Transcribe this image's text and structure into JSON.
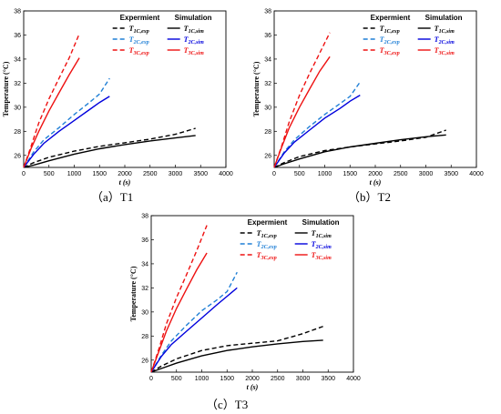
{
  "captions": [
    "（a）T1",
    "（b）T2",
    "（c）T3"
  ],
  "colors": {
    "1C": "#000000",
    "2C": "#1f7fd6",
    "2C_sim": "#0000dd",
    "3C": "#ee1111"
  },
  "chart_data": [
    {
      "type": "line",
      "xlabel": "t (s)",
      "ylabel": "Temperature (°C)",
      "xlim": [
        0,
        4000
      ],
      "ylim": [
        25,
        38
      ],
      "xticks": [
        0,
        500,
        1000,
        1500,
        2000,
        2500,
        3000,
        3500,
        4000
      ],
      "yticks": [
        26,
        28,
        30,
        32,
        34,
        36,
        38
      ],
      "grid": false,
      "legend": {
        "position": "top-right",
        "headers": [
          "Expermient",
          "Simulation"
        ]
      },
      "series": [
        {
          "name": "T1C,exp",
          "style": "dashed",
          "color": "#000000",
          "points": [
            [
              0,
              25
            ],
            [
              200,
              25.4
            ],
            [
              500,
              25.85
            ],
            [
              1000,
              26.35
            ],
            [
              1500,
              26.75
            ],
            [
              2000,
              27.05
            ],
            [
              2500,
              27.35
            ],
            [
              3000,
              27.75
            ],
            [
              3400,
              28.25
            ]
          ]
        },
        {
          "name": "T2C,exp",
          "style": "dashed",
          "color": "#1f7fd6",
          "points": [
            [
              0,
              25
            ],
            [
              200,
              26.3
            ],
            [
              400,
              27.3
            ],
            [
              700,
              28.3
            ],
            [
              1000,
              29.4
            ],
            [
              1300,
              30.4
            ],
            [
              1500,
              31.1
            ],
            [
              1700,
              32.4
            ]
          ]
        },
        {
          "name": "T3C,exp",
          "style": "dashed",
          "color": "#ee1111",
          "points": [
            [
              0,
              25
            ],
            [
              150,
              26.8
            ],
            [
              300,
              28.7
            ],
            [
              500,
              30.7
            ],
            [
              700,
              32.4
            ],
            [
              900,
              34.1
            ],
            [
              1100,
              36.1
            ]
          ]
        },
        {
          "name": "T1C,sim",
          "style": "solid",
          "color": "#000000",
          "points": [
            [
              0,
              25
            ],
            [
              200,
              25.2
            ],
            [
              500,
              25.55
            ],
            [
              1000,
              26.1
            ],
            [
              1500,
              26.55
            ],
            [
              2000,
              26.9
            ],
            [
              2500,
              27.2
            ],
            [
              3000,
              27.45
            ],
            [
              3400,
              27.65
            ]
          ]
        },
        {
          "name": "T2C,sim",
          "style": "solid",
          "color": "#0000dd",
          "points": [
            [
              0,
              25
            ],
            [
              200,
              26.1
            ],
            [
              400,
              27
            ],
            [
              700,
              28
            ],
            [
              1000,
              28.9
            ],
            [
              1300,
              29.8
            ],
            [
              1500,
              30.4
            ],
            [
              1700,
              30.9
            ]
          ]
        },
        {
          "name": "T3C,sim",
          "style": "solid",
          "color": "#ee1111",
          "points": [
            [
              0,
              25
            ],
            [
              150,
              26.6
            ],
            [
              300,
              28
            ],
            [
              500,
              29.7
            ],
            [
              700,
              31.2
            ],
            [
              900,
              32.7
            ],
            [
              1100,
              34.1
            ]
          ]
        }
      ]
    },
    {
      "type": "line",
      "xlabel": "t (s)",
      "ylabel": "Temperature (°C)",
      "xlim": [
        0,
        4000
      ],
      "ylim": [
        25,
        38
      ],
      "xticks": [
        0,
        500,
        1000,
        1500,
        2000,
        2500,
        3000,
        3500,
        4000
      ],
      "yticks": [
        26,
        28,
        30,
        32,
        34,
        36,
        38
      ],
      "grid": false,
      "legend": {
        "position": "top-right",
        "headers": [
          "Expermient",
          "Simulation"
        ]
      },
      "series": [
        {
          "name": "T1C,exp",
          "style": "dashed",
          "color": "#000000",
          "points": [
            [
              0,
              25
            ],
            [
              200,
              25.4
            ],
            [
              500,
              25.9
            ],
            [
              1000,
              26.4
            ],
            [
              1500,
              26.7
            ],
            [
              2000,
              26.95
            ],
            [
              2500,
              27.2
            ],
            [
              3000,
              27.5
            ],
            [
              3400,
              28.1
            ]
          ]
        },
        {
          "name": "T2C,exp",
          "style": "dashed",
          "color": "#1f7fd6",
          "points": [
            [
              0,
              25
            ],
            [
              200,
              26.3
            ],
            [
              400,
              27.3
            ],
            [
              700,
              28.4
            ],
            [
              1000,
              29.4
            ],
            [
              1300,
              30.3
            ],
            [
              1500,
              30.9
            ],
            [
              1700,
              32.1
            ]
          ]
        },
        {
          "name": "T3C,exp",
          "style": "dashed",
          "color": "#ee1111",
          "points": [
            [
              0,
              25
            ],
            [
              150,
              26.8
            ],
            [
              300,
              28.8
            ],
            [
              500,
              31
            ],
            [
              700,
              32.8
            ],
            [
              900,
              34.5
            ],
            [
              1100,
              36.2
            ]
          ]
        },
        {
          "name": "T1C,sim",
          "style": "solid",
          "color": "#000000",
          "points": [
            [
              0,
              25
            ],
            [
              200,
              25.3
            ],
            [
              500,
              25.7
            ],
            [
              1000,
              26.3
            ],
            [
              1500,
              26.7
            ],
            [
              2000,
              27
            ],
            [
              2500,
              27.3
            ],
            [
              3000,
              27.55
            ],
            [
              3400,
              27.7
            ]
          ]
        },
        {
          "name": "T2C,sim",
          "style": "solid",
          "color": "#0000dd",
          "points": [
            [
              0,
              25
            ],
            [
              200,
              26.2
            ],
            [
              400,
              27.1
            ],
            [
              700,
              28.1
            ],
            [
              1000,
              29.1
            ],
            [
              1300,
              29.9
            ],
            [
              1500,
              30.5
            ],
            [
              1700,
              31
            ]
          ]
        },
        {
          "name": "T3C,sim",
          "style": "solid",
          "color": "#ee1111",
          "points": [
            [
              0,
              25
            ],
            [
              150,
              26.7
            ],
            [
              300,
              28.3
            ],
            [
              500,
              30
            ],
            [
              700,
              31.5
            ],
            [
              900,
              33
            ],
            [
              1100,
              34.2
            ]
          ]
        }
      ]
    },
    {
      "type": "line",
      "xlabel": "t (s)",
      "ylabel": "Temperature (°C)",
      "xlim": [
        0,
        4000
      ],
      "ylim": [
        25,
        38
      ],
      "xticks": [
        0,
        500,
        1000,
        1500,
        2000,
        2500,
        3000,
        3500,
        4000
      ],
      "yticks": [
        26,
        28,
        30,
        32,
        34,
        36,
        38
      ],
      "grid": false,
      "legend": {
        "position": "top-right",
        "headers": [
          "Expermient",
          "Simulation"
        ]
      },
      "series": [
        {
          "name": "T1C,exp",
          "style": "dashed",
          "color": "#000000",
          "points": [
            [
              0,
              25
            ],
            [
              200,
              25.5
            ],
            [
              500,
              26.1
            ],
            [
              1000,
              26.8
            ],
            [
              1500,
              27.2
            ],
            [
              2000,
              27.4
            ],
            [
              2500,
              27.6
            ],
            [
              3000,
              28.2
            ],
            [
              3400,
              28.8
            ]
          ]
        },
        {
          "name": "T2C,exp",
          "style": "dashed",
          "color": "#1f7fd6",
          "points": [
            [
              0,
              25
            ],
            [
              200,
              26.4
            ],
            [
              400,
              27.6
            ],
            [
              700,
              28.9
            ],
            [
              1000,
              30.1
            ],
            [
              1300,
              31
            ],
            [
              1500,
              31.7
            ],
            [
              1700,
              33.3
            ]
          ]
        },
        {
          "name": "T3C,exp",
          "style": "dashed",
          "color": "#ee1111",
          "points": [
            [
              0,
              25
            ],
            [
              150,
              26.9
            ],
            [
              300,
              29
            ],
            [
              500,
              31.2
            ],
            [
              700,
              33.1
            ],
            [
              900,
              35.1
            ],
            [
              1100,
              37.2
            ]
          ]
        },
        {
          "name": "T1C,sim",
          "style": "solid",
          "color": "#000000",
          "points": [
            [
              0,
              25
            ],
            [
              200,
              25.3
            ],
            [
              500,
              25.75
            ],
            [
              1000,
              26.35
            ],
            [
              1500,
              26.8
            ],
            [
              2000,
              27.1
            ],
            [
              2500,
              27.35
            ],
            [
              3000,
              27.55
            ],
            [
              3400,
              27.65
            ]
          ]
        },
        {
          "name": "T2C,sim",
          "style": "solid",
          "color": "#0000dd",
          "points": [
            [
              0,
              25
            ],
            [
              200,
              26.3
            ],
            [
              400,
              27.3
            ],
            [
              700,
              28.4
            ],
            [
              1000,
              29.5
            ],
            [
              1300,
              30.6
            ],
            [
              1500,
              31.3
            ],
            [
              1700,
              32
            ]
          ]
        },
        {
          "name": "T3C,sim",
          "style": "solid",
          "color": "#ee1111",
          "points": [
            [
              0,
              25
            ],
            [
              150,
              26.7
            ],
            [
              300,
              28.4
            ],
            [
              500,
              30.3
            ],
            [
              700,
              31.9
            ],
            [
              900,
              33.5
            ],
            [
              1100,
              34.9
            ]
          ]
        }
      ]
    }
  ]
}
